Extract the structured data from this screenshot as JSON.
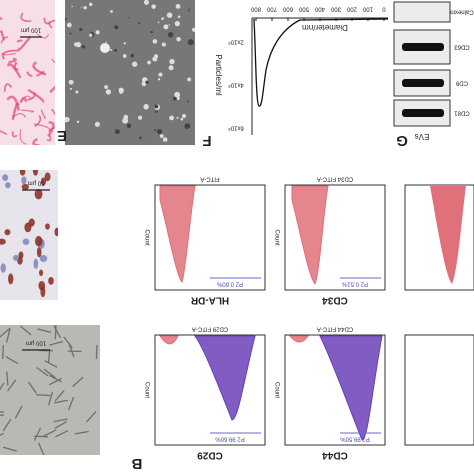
{
  "figure": {
    "panel_labels": [
      "E",
      "F",
      "G",
      "B"
    ],
    "histology_scale": "100 µm",
    "ihc_scale": "50 µm",
    "phase_scale": "100 µm",
    "nta": {
      "x_label": "Diameter/nm",
      "y_label": "Particles/ml",
      "x_ticks": [
        "0",
        "100",
        "200",
        "300",
        "400",
        "500",
        "600",
        "700",
        "800"
      ],
      "y_ticks": [
        "2x10⁸",
        "4x10⁸",
        "6x10⁸"
      ]
    },
    "western": {
      "markers": [
        "Calnexin",
        "CD63",
        "CD9",
        "CD81"
      ],
      "lane": "EVs"
    },
    "flow": {
      "y_label": "Count",
      "plots": [
        {
          "title": "FITC-A",
          "marker": "HLA-DR",
          "gate": "P2 0.60%"
        },
        {
          "title": "CD34 FITC-A",
          "marker": "CD34",
          "gate": "P2 0.51%"
        },
        {
          "title": "CD29 FITC-A",
          "marker": "CD29",
          "gate": "P2 99.60%"
        },
        {
          "title": "CD44 FITC-A",
          "marker": "CD44",
          "gate": "P2 99.50%"
        }
      ]
    }
  }
}
